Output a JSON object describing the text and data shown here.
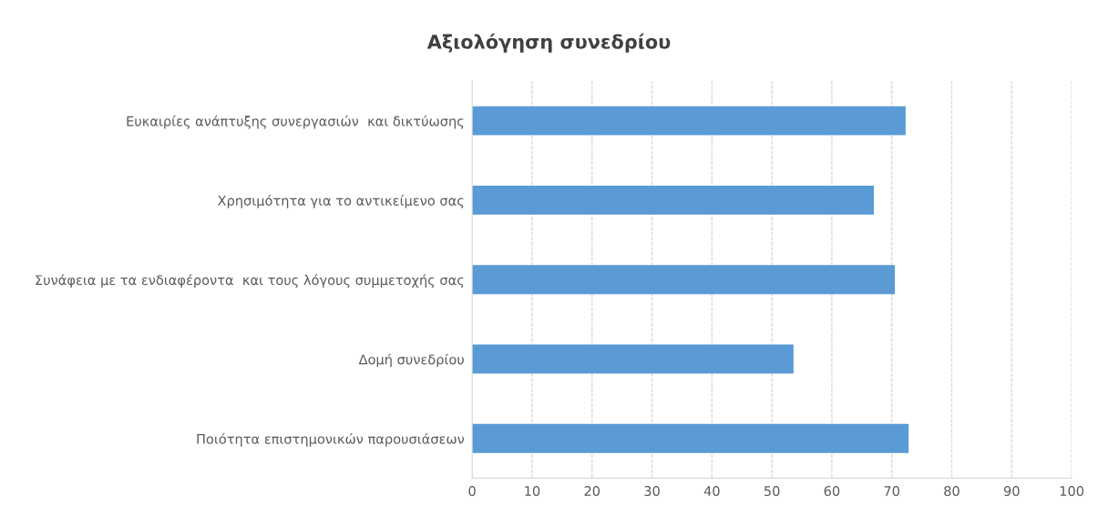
{
  "chart_data": {
    "type": "bar",
    "orientation": "horizontal",
    "title": "Αξιολόγηση συνεδρίου",
    "categories": [
      "Ευκαιρίες ανάπτυξης συνεργασιών  και δικτύωσης",
      "Χρησιμότητα για το αντικείμενο σας",
      "Συνάφεια με τα ενδιαφέροντα  και τους λόγους συμμετοχής σας",
      "Δομή συνεδρίου",
      "Ποιότητα επιστημονικών παρουσιάσεων"
    ],
    "values": [
      72.2,
      66.9,
      70.4,
      53.5,
      72.7
    ],
    "color": "#5b9bd5",
    "xlim": [
      0,
      100
    ],
    "xticks": [
      0,
      10,
      20,
      30,
      40,
      50,
      60,
      70,
      80,
      90,
      100
    ],
    "grid": "x"
  }
}
